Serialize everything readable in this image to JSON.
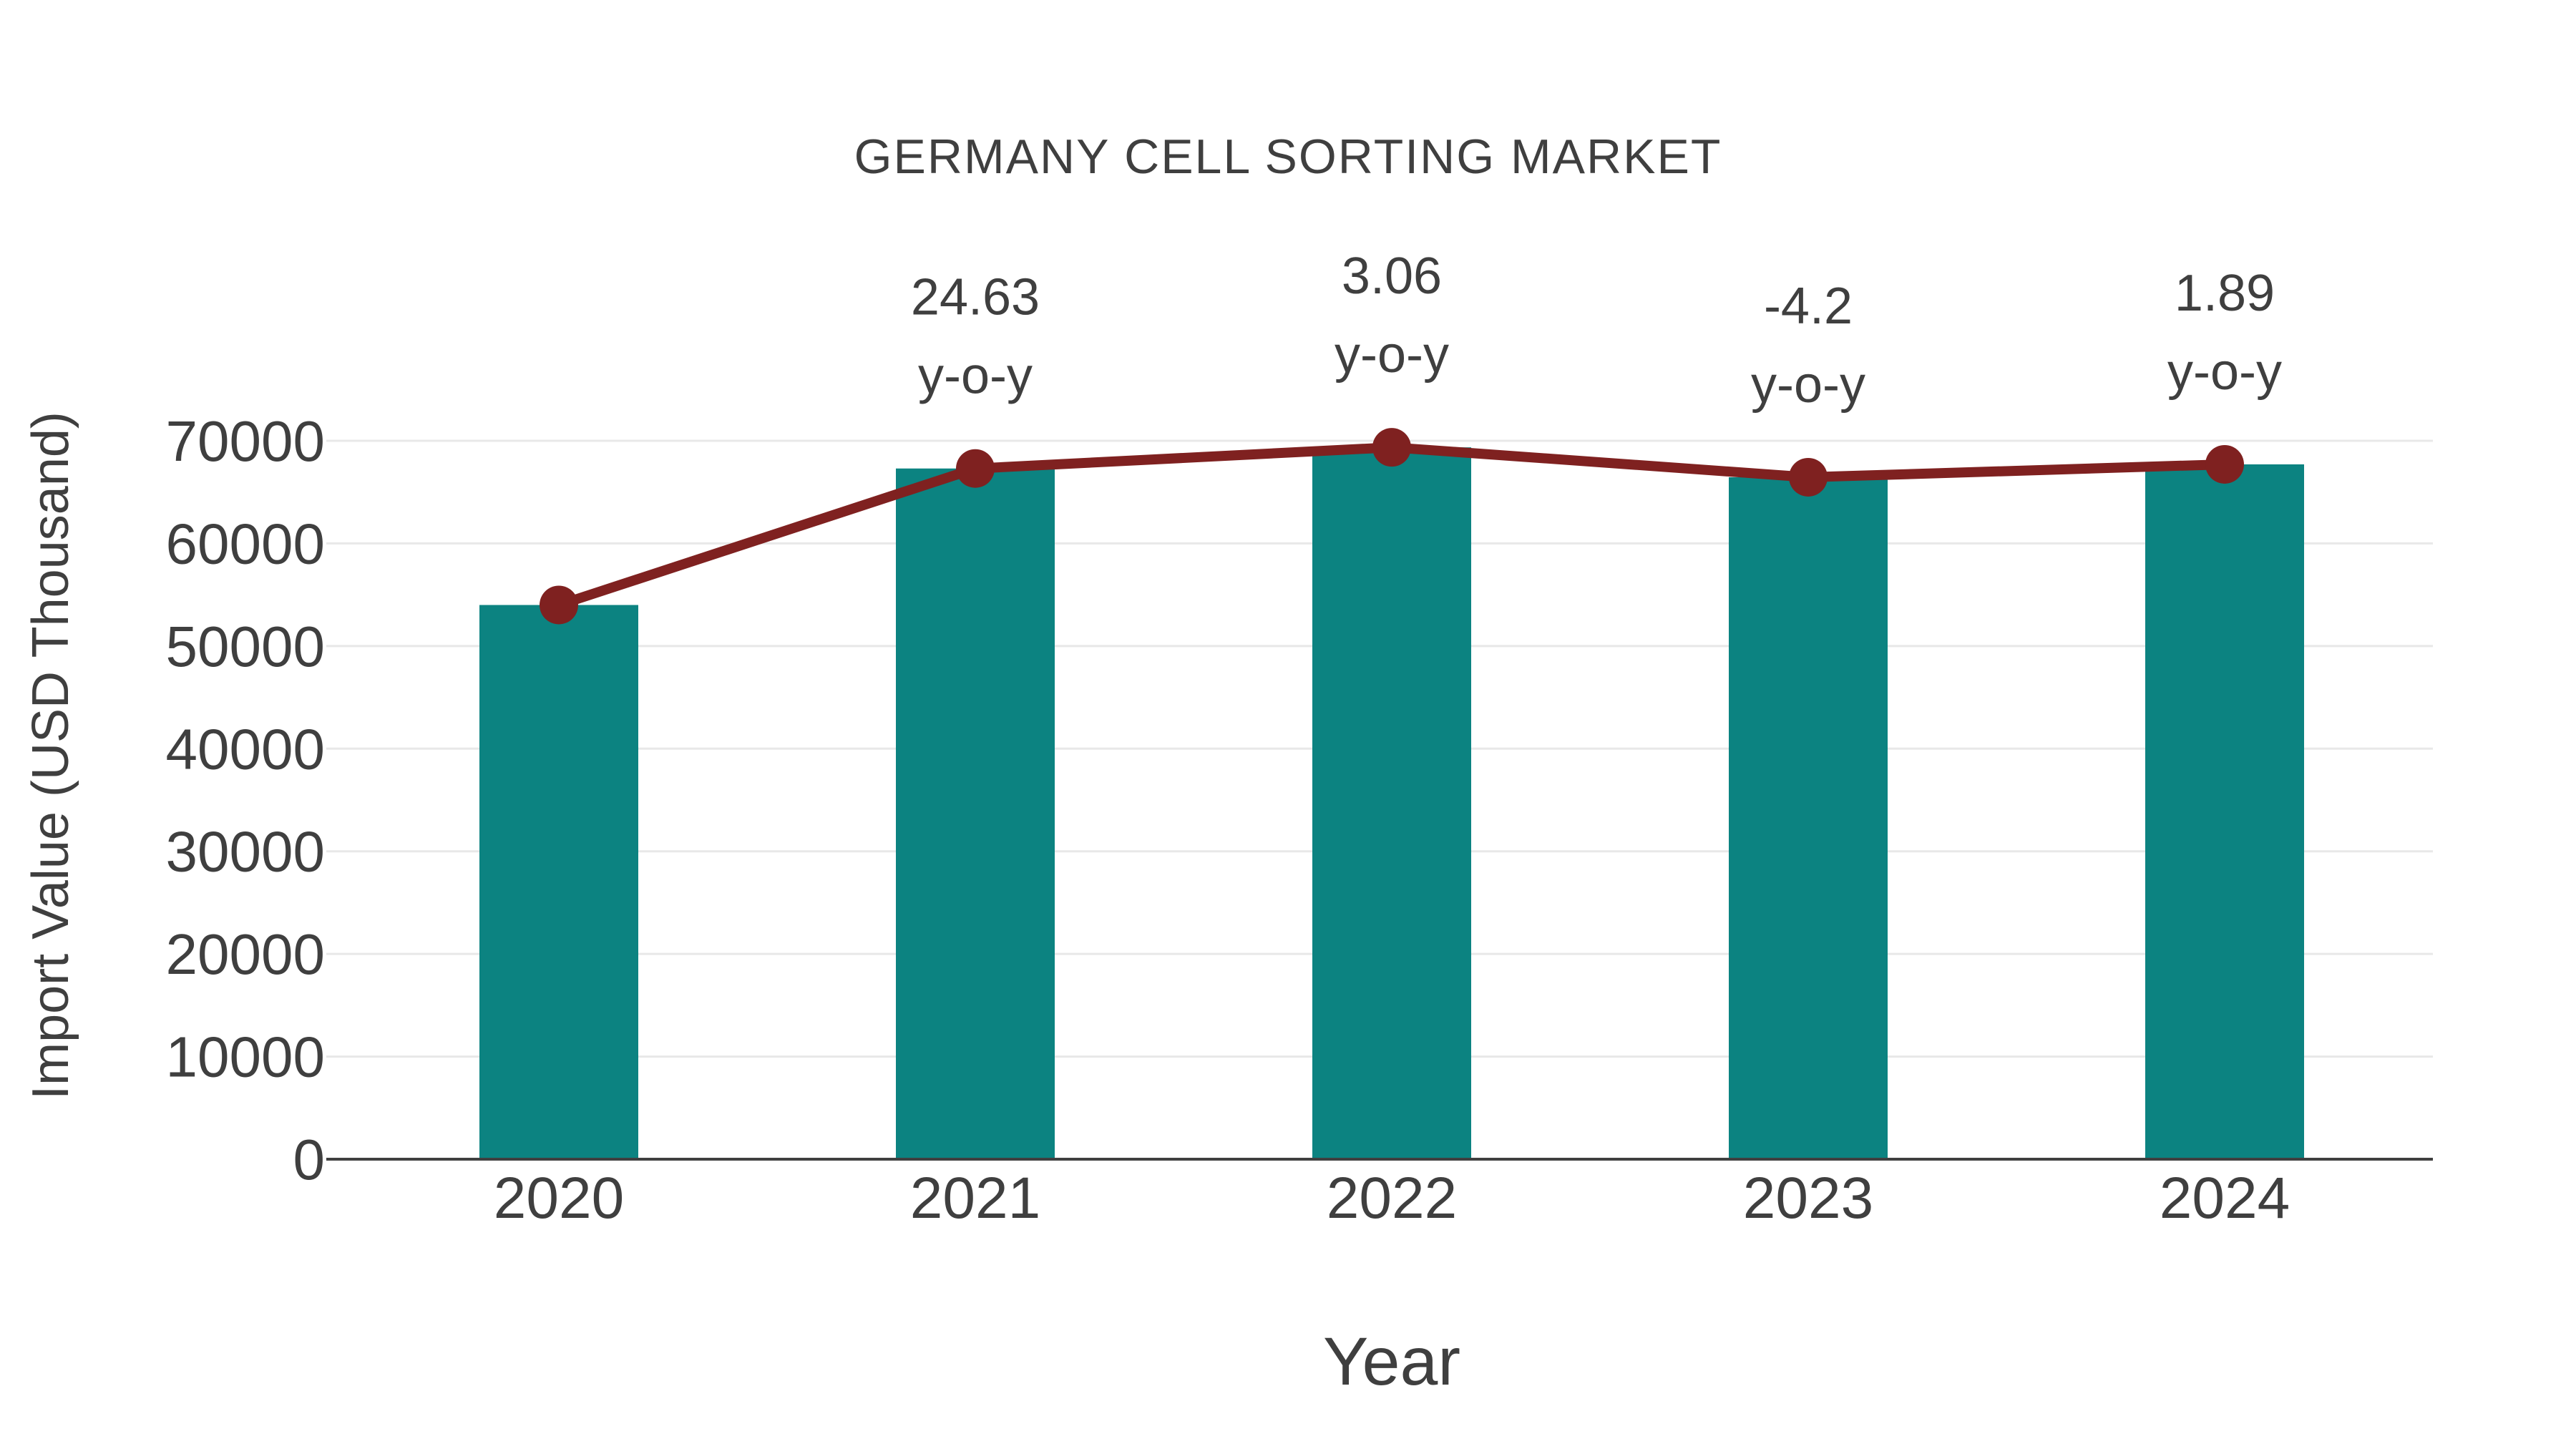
{
  "chart_data": {
    "type": "bar+line",
    "title": "GERMANY CELL SORTING MARKET",
    "xlabel": "Year",
    "ylabel": "Import Value (USD Thousand)",
    "categories": [
      "2020",
      "2021",
      "2022",
      "2023",
      "2024"
    ],
    "series": [
      {
        "name": "Import Value (USD Thousand)",
        "type": "bar",
        "color": "#0C8381",
        "values": [
          54000,
          67300,
          69360,
          66447,
          67703
        ]
      },
      {
        "name": "Import Value trend",
        "type": "line",
        "color": "#7F2120",
        "marker_color": "#7F2120",
        "values": [
          54000,
          67300,
          69360,
          66447,
          67703
        ]
      }
    ],
    "annotations": [
      {
        "category": "2021",
        "line1": "24.63",
        "line2": "y-o-y"
      },
      {
        "category": "2022",
        "line1": "3.06",
        "line2": "y-o-y"
      },
      {
        "category": "2023",
        "line1": "-4.2",
        "line2": "y-o-y"
      },
      {
        "category": "2024",
        "line1": "1.89",
        "line2": "y-o-y"
      }
    ],
    "ylim": [
      0,
      70000
    ],
    "yticks": [
      0,
      10000,
      20000,
      30000,
      40000,
      50000,
      60000,
      70000
    ],
    "grid": true,
    "legend": false,
    "colors": {
      "text": "#3F3F3F",
      "grid": "#E8E8E8",
      "axis": "#404040",
      "background": "#FFFFFF"
    }
  }
}
